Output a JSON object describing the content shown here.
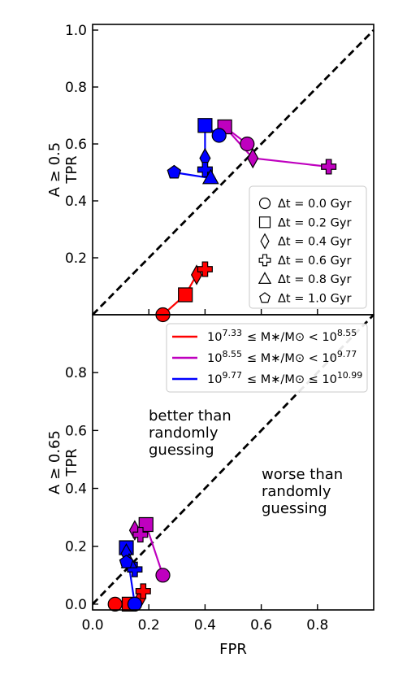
{
  "chart_data": [
    {
      "type": "line",
      "panel": "top",
      "ylabel": [
        "A ≥ 0.5",
        "TPR"
      ],
      "xlabel": "",
      "xlim": [
        0,
        1
      ],
      "ylim": [
        0,
        1.02
      ],
      "yticks": [
        "0.2",
        "0.4",
        "0.6",
        "0.8",
        "1.0"
      ],
      "ytick_values": [
        0.2,
        0.4,
        0.6,
        0.8,
        1.0
      ],
      "xtick_values": [
        0.2,
        0.4,
        0.6,
        0.8
      ],
      "diagonal": true,
      "legend_position": "center-right",
      "legend": [
        {
          "marker": "circle",
          "label": "Δt = 0.0 Gyr"
        },
        {
          "marker": "square",
          "label": "Δt = 0.2 Gyr"
        },
        {
          "marker": "diamond",
          "label": "Δt = 0.4 Gyr"
        },
        {
          "marker": "plus",
          "label": "Δt = 0.6 Gyr"
        },
        {
          "marker": "triangle",
          "label": "Δt = 0.8 Gyr"
        },
        {
          "marker": "pentagon",
          "label": "Δt = 1.0 Gyr"
        }
      ],
      "series": [
        {
          "color": "#ff0000",
          "points": [
            {
              "x": 0.25,
              "y": 0.0,
              "marker": "circle"
            },
            {
              "x": 0.33,
              "y": 0.07,
              "marker": "square"
            },
            {
              "x": 0.37,
              "y": 0.14,
              "marker": "diamond"
            },
            {
              "x": 0.4,
              "y": 0.16,
              "marker": "plus"
            }
          ]
        },
        {
          "color": "#bf00bf",
          "points": [
            {
              "x": 0.55,
              "y": 0.6,
              "marker": "circle"
            },
            {
              "x": 0.47,
              "y": 0.66,
              "marker": "square"
            },
            {
              "x": 0.57,
              "y": 0.55,
              "marker": "diamond"
            },
            {
              "x": 0.84,
              "y": 0.52,
              "marker": "plus"
            }
          ]
        },
        {
          "color": "#0000ff",
          "points": [
            {
              "x": 0.45,
              "y": 0.63,
              "marker": "circle"
            },
            {
              "x": 0.4,
              "y": 0.665,
              "marker": "square"
            },
            {
              "x": 0.4,
              "y": 0.55,
              "marker": "diamond"
            },
            {
              "x": 0.4,
              "y": 0.51,
              "marker": "plus"
            },
            {
              "x": 0.42,
              "y": 0.48,
              "marker": "triangle"
            },
            {
              "x": 0.29,
              "y": 0.5,
              "marker": "pentagon"
            }
          ]
        }
      ]
    },
    {
      "type": "line",
      "panel": "bottom",
      "ylabel": [
        "A ≥ 0.65",
        "TPR"
      ],
      "xlabel": "FPR",
      "xlim": [
        0,
        1
      ],
      "ylim": [
        -0.02,
        1.0
      ],
      "yticks": [
        "0.0",
        "0.2",
        "0.4",
        "0.6",
        "0.8"
      ],
      "ytick_values": [
        0.0,
        0.2,
        0.4,
        0.6,
        0.8
      ],
      "xticks": [
        "0.0",
        "0.2",
        "0.4",
        "0.6",
        "0.8"
      ],
      "xtick_values": [
        0.0,
        0.2,
        0.4,
        0.6,
        0.8
      ],
      "diagonal": true,
      "legend_position": "top-right",
      "legend": [
        {
          "color": "#ff0000",
          "label": "10^7.33 ≤ M∗/M⊙ < 10^8.55"
        },
        {
          "color": "#bf00bf",
          "label": "10^8.55 ≤ M∗/M⊙ < 10^9.77"
        },
        {
          "color": "#0000ff",
          "label": "10^9.77 ≤ M∗/M⊙ ≤ 10^10.99"
        }
      ],
      "annotations": [
        {
          "lines": [
            "better than",
            "randomly",
            "guessing"
          ]
        },
        {
          "lines": [
            "worse than",
            "randomly",
            "guessing"
          ]
        }
      ],
      "series": [
        {
          "color": "#ff0000",
          "points": [
            {
              "x": 0.08,
              "y": 0.0,
              "marker": "circle"
            },
            {
              "x": 0.13,
              "y": 0.0,
              "marker": "square"
            },
            {
              "x": 0.17,
              "y": 0.02,
              "marker": "diamond"
            },
            {
              "x": 0.18,
              "y": 0.045,
              "marker": "plus"
            }
          ]
        },
        {
          "color": "#bf00bf",
          "points": [
            {
              "x": 0.25,
              "y": 0.1,
              "marker": "circle"
            },
            {
              "x": 0.19,
              "y": 0.275,
              "marker": "square"
            },
            {
              "x": 0.15,
              "y": 0.255,
              "marker": "diamond"
            },
            {
              "x": 0.17,
              "y": 0.24,
              "marker": "plus"
            }
          ]
        },
        {
          "color": "#0000ff",
          "points": [
            {
              "x": 0.15,
              "y": 0.0,
              "marker": "circle"
            },
            {
              "x": 0.12,
              "y": 0.195,
              "marker": "square"
            },
            {
              "x": 0.12,
              "y": 0.175,
              "marker": "diamond"
            },
            {
              "x": 0.15,
              "y": 0.12,
              "marker": "plus"
            },
            {
              "x": 0.13,
              "y": 0.145,
              "marker": "triangle"
            },
            {
              "x": 0.12,
              "y": 0.145,
              "marker": "pentagon"
            }
          ]
        }
      ]
    }
  ]
}
